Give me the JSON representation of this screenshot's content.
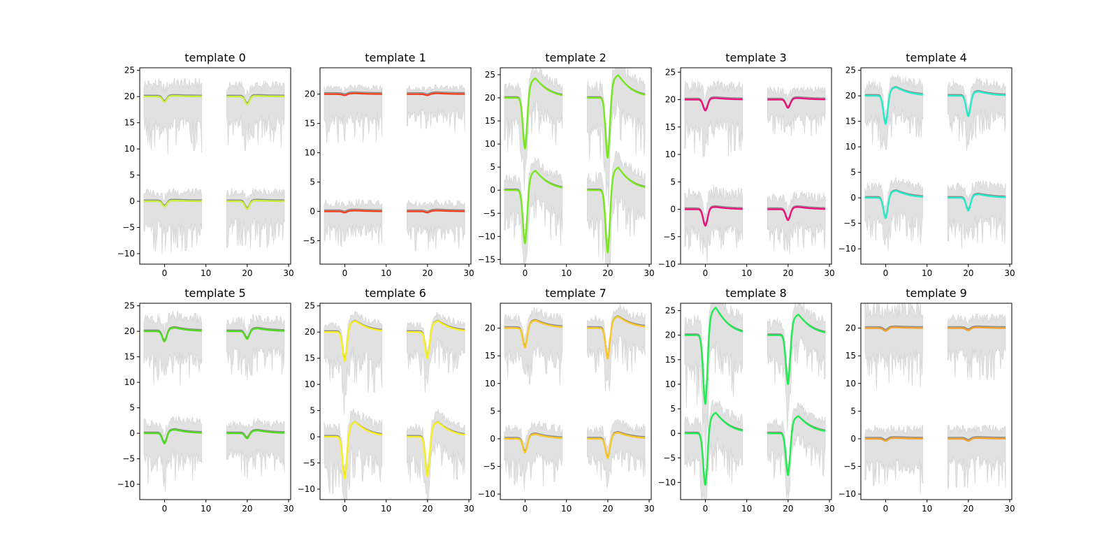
{
  "chart_data": [
    {
      "type": "line",
      "title": "template 0",
      "color": "#c8f03c",
      "ylim": [
        -12,
        25.5
      ],
      "yticks": [
        -10,
        -5,
        0,
        5,
        10,
        15,
        20,
        25
      ],
      "xlim": [
        -6,
        30.5
      ],
      "xticks": [
        0,
        10,
        20,
        30
      ],
      "channels": [
        {
          "offset": 20,
          "x0": -5,
          "dip": -1.0,
          "peak": 0.1,
          "band_low": -11,
          "band_high": 3.5
        },
        {
          "offset": 20,
          "x0": 15,
          "dip": -1.5,
          "peak": 0.1,
          "band_low": -10,
          "band_high": 3.0
        },
        {
          "offset": 0,
          "x0": -5,
          "dip": -1.0,
          "peak": 0.1,
          "band_low": -10,
          "band_high": 2.5
        },
        {
          "offset": 0,
          "x0": 15,
          "dip": -1.5,
          "peak": 0.1,
          "band_low": -9,
          "band_high": 2.5
        }
      ]
    },
    {
      "type": "line",
      "title": "template 1",
      "color": "#f04020",
      "ylim": [
        -9,
        24.5
      ],
      "yticks": [
        -5,
        0,
        5,
        10,
        15,
        20
      ],
      "xlim": [
        -6,
        30.5
      ],
      "xticks": [
        0,
        10,
        20,
        30
      ],
      "channels": [
        {
          "offset": 20,
          "x0": -5,
          "dip": -0.2,
          "peak": 0.1,
          "band_low": -8.5,
          "band_high": 1.5
        },
        {
          "offset": 20,
          "x0": 15,
          "dip": -0.2,
          "peak": 0.1,
          "band_low": -7,
          "band_high": 1.5
        },
        {
          "offset": 0,
          "x0": -5,
          "dip": -0.2,
          "peak": 0.1,
          "band_low": -6,
          "band_high": 2.0
        },
        {
          "offset": 0,
          "x0": 15,
          "dip": -0.2,
          "peak": 0.1,
          "band_low": -7,
          "band_high": 2.0
        }
      ]
    },
    {
      "type": "line",
      "title": "template 2",
      "color": "#78e81e",
      "ylim": [
        -16,
        26.5
      ],
      "yticks": [
        -15,
        -10,
        -5,
        0,
        5,
        10,
        15,
        20,
        25
      ],
      "xlim": [
        -6,
        30.5
      ],
      "xticks": [
        0,
        10,
        20,
        30
      ],
      "channels": [
        {
          "offset": 20,
          "x0": -5,
          "dip": -11,
          "peak": 3.0,
          "band_low": -12,
          "band_high": 3.5
        },
        {
          "offset": 20,
          "x0": 15,
          "dip": -13,
          "peak": 3.5,
          "band_low": -14,
          "band_high": 4.0
        },
        {
          "offset": 0,
          "x0": -5,
          "dip": -11.5,
          "peak": 3.0,
          "band_low": -12.5,
          "band_high": 3.5
        },
        {
          "offset": 0,
          "x0": 15,
          "dip": -13.5,
          "peak": 3.5,
          "band_low": -14.5,
          "band_high": 4.0
        }
      ]
    },
    {
      "type": "line",
      "title": "template 3",
      "color": "#e8147a",
      "ylim": [
        -10,
        25.8
      ],
      "yticks": [
        -10,
        -5,
        0,
        5,
        10,
        15,
        20,
        25
      ],
      "xlim": [
        -6,
        30.5
      ],
      "xticks": [
        0,
        10,
        20,
        30
      ],
      "channels": [
        {
          "offset": 20,
          "x0": -5,
          "dip": -2.0,
          "peak": 0.2,
          "band_low": -11,
          "band_high": 3.5
        },
        {
          "offset": 20,
          "x0": 15,
          "dip": -1.5,
          "peak": 0.2,
          "band_low": -7,
          "band_high": 2.5
        },
        {
          "offset": 0,
          "x0": -5,
          "dip": -3.0,
          "peak": 0.3,
          "band_low": -8,
          "band_high": 4.0
        },
        {
          "offset": 0,
          "x0": 15,
          "dip": -2.0,
          "peak": 0.3,
          "band_low": -7.5,
          "band_high": 3.0
        }
      ]
    },
    {
      "type": "line",
      "title": "template 4",
      "color": "#28ecc8",
      "ylim": [
        -13,
        25.5
      ],
      "yticks": [
        -10,
        -5,
        0,
        5,
        10,
        15,
        20,
        25
      ],
      "xlim": [
        -6,
        30.5
      ],
      "xticks": [
        0,
        10,
        20,
        30
      ],
      "channels": [
        {
          "offset": 20,
          "x0": -5,
          "dip": -5.5,
          "peak": 1.2,
          "band_low": -10,
          "band_high": 3.0
        },
        {
          "offset": 20,
          "x0": 15,
          "dip": -4.0,
          "peak": 0.6,
          "band_low": -9,
          "band_high": 3.0
        },
        {
          "offset": 0,
          "x0": -5,
          "dip": -4.0,
          "peak": 1.0,
          "band_low": -9.5,
          "band_high": 3.0
        },
        {
          "offset": 0,
          "x0": 15,
          "dip": -2.5,
          "peak": 0.5,
          "band_low": -10,
          "band_high": 3.0
        }
      ]
    },
    {
      "type": "line",
      "title": "template 5",
      "color": "#50dc1e",
      "ylim": [
        -13,
        25.5
      ],
      "yticks": [
        -10,
        -5,
        0,
        5,
        10,
        15,
        20,
        25
      ],
      "xlim": [
        -6,
        30.5
      ],
      "xticks": [
        0,
        10,
        20,
        30
      ],
      "channels": [
        {
          "offset": 20,
          "x0": -5,
          "dip": -2.0,
          "peak": 0.5,
          "band_low": -12,
          "band_high": 3.5
        },
        {
          "offset": 20,
          "x0": 15,
          "dip": -1.5,
          "peak": 0.4,
          "band_low": -9,
          "band_high": 3.0
        },
        {
          "offset": 0,
          "x0": -5,
          "dip": -2.0,
          "peak": 0.5,
          "band_low": -11,
          "band_high": 3.0
        },
        {
          "offset": 0,
          "x0": 15,
          "dip": -1.0,
          "peak": 0.4,
          "band_low": -9,
          "band_high": 2.5
        }
      ]
    },
    {
      "type": "line",
      "title": "template 6",
      "color": "#f8f020",
      "ylim": [
        -12,
        25.5
      ],
      "yticks": [
        -10,
        -5,
        0,
        5,
        10,
        15,
        20,
        25
      ],
      "xlim": [
        -6,
        30.5
      ],
      "xticks": [
        0,
        10,
        20,
        30
      ],
      "channels": [
        {
          "offset": 20,
          "x0": -5,
          "dip": -5.5,
          "peak": 1.5,
          "band_low": -12.5,
          "band_high": 2.0
        },
        {
          "offset": 20,
          "x0": 15,
          "dip": -5.0,
          "peak": 1.5,
          "band_low": -9,
          "band_high": 2.0
        },
        {
          "offset": 0,
          "x0": -5,
          "dip": -8.0,
          "peak": 2.0,
          "band_low": -11,
          "band_high": 3.0
        },
        {
          "offset": 0,
          "x0": 15,
          "dip": -7.5,
          "peak": 2.0,
          "band_low": -9,
          "band_high": 2.5
        }
      ]
    },
    {
      "type": "line",
      "title": "template 7",
      "color": "#f8c828",
      "ylim": [
        -11,
        24.5
      ],
      "yticks": [
        -10,
        -5,
        0,
        5,
        10,
        15,
        20
      ],
      "xlim": [
        -6,
        30.5
      ],
      "xticks": [
        0,
        10,
        20,
        30
      ],
      "channels": [
        {
          "offset": 20,
          "x0": -5,
          "dip": -3.5,
          "peak": 1.0,
          "band_low": -11,
          "band_high": 2.5
        },
        {
          "offset": 20,
          "x0": 15,
          "dip": -5.5,
          "peak": 1.5,
          "band_low": -9,
          "band_high": 2.5
        },
        {
          "offset": 0,
          "x0": -5,
          "dip": -2.5,
          "peak": 0.6,
          "band_low": -9,
          "band_high": 2.5
        },
        {
          "offset": 0,
          "x0": 15,
          "dip": -3.5,
          "peak": 0.8,
          "band_low": -8,
          "band_high": 2.5
        }
      ]
    },
    {
      "type": "line",
      "title": "template 8",
      "color": "#22ea50",
      "ylim": [
        -13.5,
        26.5
      ],
      "yticks": [
        -10,
        -5,
        0,
        5,
        10,
        15,
        20,
        25
      ],
      "xlim": [
        -6,
        30.5
      ],
      "xticks": [
        0,
        10,
        20,
        30
      ],
      "channels": [
        {
          "offset": 20,
          "x0": -5,
          "dip": -14,
          "peak": 4.0,
          "band_low": -15,
          "band_high": 4.5
        },
        {
          "offset": 20,
          "x0": 15,
          "dip": -10,
          "peak": 3.0,
          "band_low": -11,
          "band_high": 3.5
        },
        {
          "offset": 0,
          "x0": -5,
          "dip": -10.5,
          "peak": 3.0,
          "band_low": -12,
          "band_high": 3.5
        },
        {
          "offset": 0,
          "x0": 15,
          "dip": -8.5,
          "peak": 2.5,
          "band_low": -9.5,
          "band_high": 3.0
        }
      ]
    },
    {
      "type": "line",
      "title": "template 9",
      "color": "#f0a030",
      "ylim": [
        -11,
        24.5
      ],
      "yticks": [
        -10,
        -5,
        0,
        5,
        10,
        15,
        20
      ],
      "xlim": [
        -6,
        30.5
      ],
      "xticks": [
        0,
        10,
        20,
        30
      ],
      "channels": [
        {
          "offset": 20,
          "x0": -5,
          "dip": -0.5,
          "peak": 0.1,
          "band_low": -11,
          "band_high": 5.0
        },
        {
          "offset": 20,
          "x0": 15,
          "dip": -0.4,
          "peak": 0.1,
          "band_low": -10,
          "band_high": 2.5
        },
        {
          "offset": 0,
          "x0": -5,
          "dip": -0.4,
          "peak": 0.1,
          "band_low": -10,
          "band_high": 2.5
        },
        {
          "offset": 0,
          "x0": 15,
          "dip": -0.4,
          "peak": 0.1,
          "band_low": -9,
          "band_high": 2.5
        }
      ]
    }
  ]
}
